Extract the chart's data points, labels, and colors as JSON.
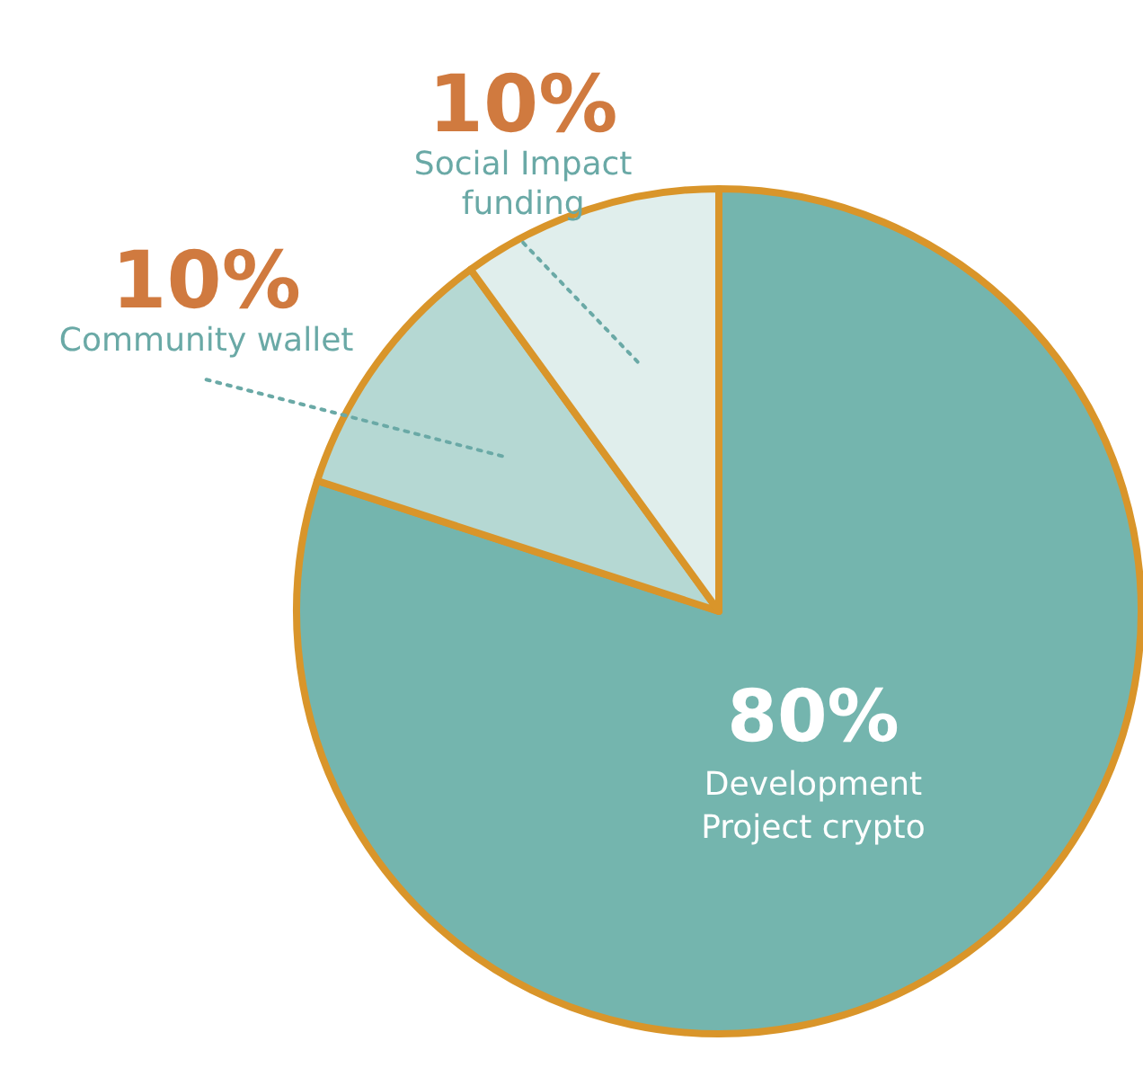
{
  "chart_data": {
    "type": "pie",
    "categories": [
      "Development Project crypto",
      "Community wallet",
      "Social Impact funding"
    ],
    "values": [
      80,
      10,
      10
    ],
    "value_labels": [
      "80%",
      "10%",
      "10%"
    ],
    "colors": [
      "#74b5ae",
      "#b5d8d3",
      "#e0eeec"
    ]
  }
}
